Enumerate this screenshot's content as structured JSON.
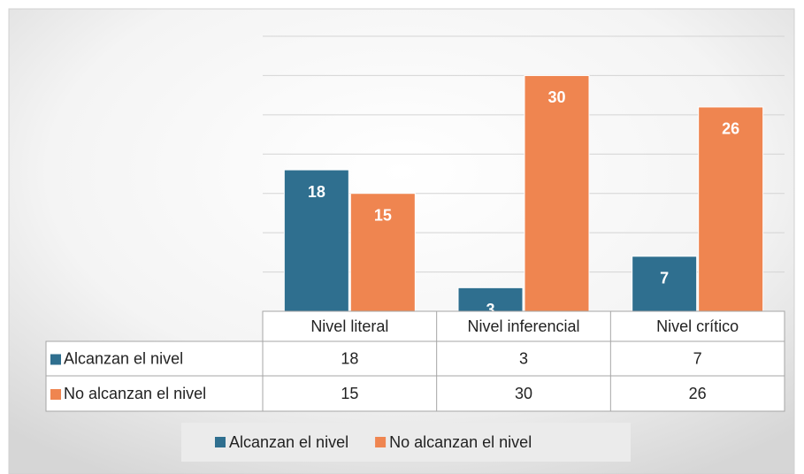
{
  "chart_data": {
    "type": "bar",
    "categories": [
      "Nivel literal",
      "Nivel inferencial",
      "Nivel crítico"
    ],
    "series": [
      {
        "name": "Alcanzan el nivel",
        "color": "#2f6f8f",
        "values": [
          18,
          3,
          7
        ]
      },
      {
        "name": "No alcanzan el nivel",
        "color": "#ef8550",
        "values": [
          15,
          30,
          26
        ]
      }
    ],
    "ylim": [
      0,
      35
    ],
    "yticks": [
      0,
      5,
      10,
      15,
      20,
      25,
      30,
      35
    ],
    "grid": true,
    "data_table": true,
    "legend": "bottom"
  }
}
